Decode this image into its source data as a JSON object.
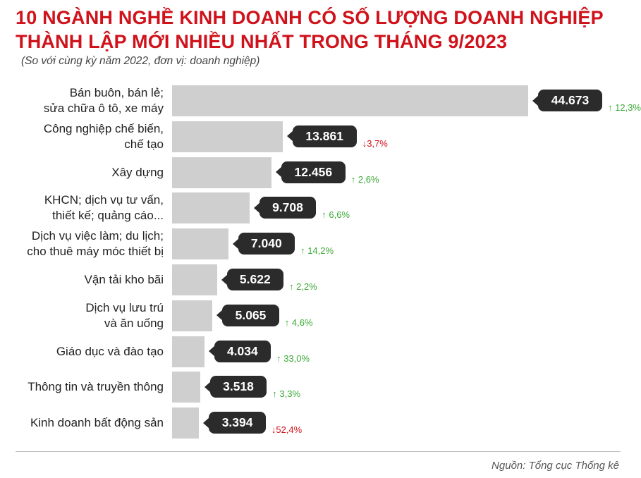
{
  "title": "10 NGÀNH NGHỀ KINH DOANH CÓ SỐ LƯỢNG DOANH NGHIỆP THÀNH LẬP MỚI NHIỀU NHẤT TRONG THÁNG 9/2023",
  "subtitle": "(So với cùng kỳ năm 2022, đơn vị: doanh nghiệp)",
  "source": "Nguồn: Tổng cục Thống kê",
  "colors": {
    "title": "#d0121b",
    "bar": "#cfcfcf",
    "label_bubble": "#2b2b2b",
    "up": "#3aa935",
    "down": "#d0121b"
  },
  "chart_data": {
    "type": "bar",
    "orientation": "horizontal",
    "title": "10 NGÀNH NGHỀ KINH DOANH CÓ SỐ LƯỢNG DOANH NGHIỆP THÀNH LẬP MỚI NHIỀU NHẤT TRONG THÁNG 9/2023",
    "subtitle": "(So với cùng kỳ năm 2022, đơn vị: doanh nghiệp)",
    "categories": [
      [
        "Bán buôn, bán lẻ;",
        "sửa chữa ô tô, xe máy"
      ],
      [
        "Công nghiệp chế biến,",
        "chế tạo"
      ],
      [
        "Xây dựng"
      ],
      [
        "KHCN; dịch vụ tư vấn,",
        "thiết kế; quảng cáo..."
      ],
      [
        "Dịch vụ việc làm; du lịch;",
        "cho thuê máy móc thiết bị"
      ],
      [
        "Vận tải kho bãi"
      ],
      [
        "Dịch vụ lưu trú",
        "và ăn uống"
      ],
      [
        "Giáo dục và đào tạo"
      ],
      [
        "Thông tin và truyền thông"
      ],
      [
        "Kinh doanh bất động sản"
      ]
    ],
    "values": [
      44673,
      13861,
      12456,
      9708,
      7040,
      5622,
      5065,
      4034,
      3518,
      3394
    ],
    "value_labels": [
      "44.673",
      "13.861",
      "12.456",
      "9.708",
      "7.040",
      "5.622",
      "5.065",
      "4.034",
      "3.518",
      "3.394"
    ],
    "change_direction": [
      "up",
      "down",
      "up",
      "up",
      "up",
      "up",
      "up",
      "up",
      "up",
      "down"
    ],
    "change_labels": [
      "12,3%",
      "3,7%",
      "2,6%",
      "6,6%",
      "14,2%",
      "2,2%",
      "4,6%",
      "33,0%",
      "3,3%",
      "52,4%"
    ],
    "xlim": [
      0,
      44673
    ],
    "grid": false,
    "legend": "none"
  }
}
